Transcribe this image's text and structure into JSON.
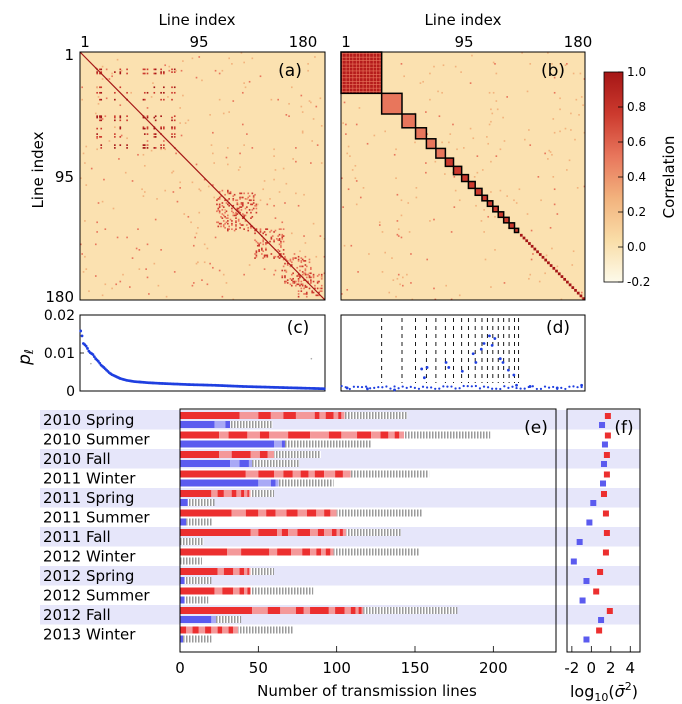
{
  "figure": {
    "panel_a": {
      "label": "(a)",
      "top_axis_label": "Line index",
      "left_axis_label": "Line index",
      "top_ticks": [
        "1",
        "95",
        "180"
      ],
      "left_ticks": [
        "1",
        "95",
        "180"
      ]
    },
    "panel_b": {
      "label": "(b)",
      "top_axis_label": "Line index",
      "top_ticks": [
        "1",
        "95",
        "180"
      ]
    },
    "colorbar": {
      "label": "Correlation",
      "ticks": [
        "1.0",
        "0.8",
        "0.6",
        "0.4",
        "0.2",
        "0.0",
        "-0.2"
      ],
      "colors": [
        "#fdfaea",
        "#f9dda7",
        "#f2b27d",
        "#e8765c",
        "#cc3a2e",
        "#a51616"
      ]
    },
    "panel_c": {
      "label": "(c)",
      "ylabel": "p_ℓ",
      "yticks": [
        "0.02",
        "0.01",
        "0"
      ]
    },
    "panel_d": {
      "label": "(d)"
    },
    "panel_e": {
      "label": "(e)",
      "xlabel": "Number of transmission lines",
      "xticks": [
        "0",
        "50",
        "100",
        "150",
        "200"
      ]
    },
    "panel_f": {
      "label": "(f)",
      "xlabel": "log₁₀(σ̄²)",
      "xticks": [
        "-2",
        "0",
        "2",
        "4"
      ]
    },
    "colors": {
      "red": "#ec2f2f",
      "pink": "#f4999a",
      "blue": "#5b5bef",
      "lightblue": "#a9a9f6",
      "gray": "#9a9a9a",
      "band": "#e6e6fa",
      "dot_blue": "#1f3fe0"
    }
  },
  "chart_data": [
    {
      "type": "heatmap",
      "panel": "a",
      "title": "",
      "xlabel": "Line index",
      "ylabel": "Line index",
      "x_ticks": [
        1,
        95,
        180
      ],
      "y_ticks": [
        1,
        95,
        180
      ],
      "color_range": [
        -0.2,
        1.0
      ],
      "description_blocks": "unsorted correlation matrix of 180 transmission lines, strong diagonal"
    },
    {
      "type": "heatmap",
      "panel": "b",
      "xlabel": "Line index",
      "x_ticks": [
        1,
        95,
        180
      ],
      "color_range": [
        -0.2,
        1.0
      ],
      "cluster_blocks_line_index": [
        [
          1,
          30
        ],
        [
          31,
          45
        ],
        [
          46,
          55
        ],
        [
          56,
          63
        ],
        [
          64,
          70
        ],
        [
          71,
          77
        ],
        [
          78,
          83
        ],
        [
          84,
          89
        ],
        [
          90,
          94
        ],
        [
          95,
          99
        ],
        [
          100,
          104
        ],
        [
          105,
          108
        ],
        [
          109,
          112
        ],
        [
          113,
          116
        ],
        [
          117,
          120
        ],
        [
          121,
          124
        ],
        [
          125,
          128
        ],
        [
          129,
          131
        ]
      ]
    },
    {
      "type": "scatter",
      "panel": "c",
      "ylabel": "p_ℓ",
      "ylim": [
        0,
        0.02
      ],
      "x_range": [
        1,
        180
      ],
      "points_sampled": [
        [
          1,
          0.0158
        ],
        [
          2,
          0.0145
        ],
        [
          3,
          0.0125
        ],
        [
          4,
          0.0122
        ],
        [
          5,
          0.0118
        ],
        [
          6,
          0.0112
        ],
        [
          7,
          0.0105
        ],
        [
          8,
          0.0101
        ],
        [
          10,
          0.0096
        ],
        [
          12,
          0.0085
        ],
        [
          14,
          0.0078
        ],
        [
          16,
          0.0068
        ],
        [
          18,
          0.0062
        ],
        [
          20,
          0.0055
        ],
        [
          22,
          0.0048
        ],
        [
          24,
          0.0043
        ],
        [
          27,
          0.0038
        ],
        [
          30,
          0.0033
        ],
        [
          35,
          0.0028
        ],
        [
          40,
          0.0025
        ],
        [
          50,
          0.0022
        ],
        [
          60,
          0.002
        ],
        [
          80,
          0.0017
        ],
        [
          100,
          0.0015
        ],
        [
          120,
          0.0012
        ],
        [
          140,
          0.001
        ],
        [
          160,
          0.0008
        ],
        [
          180,
          0.0006
        ]
      ]
    },
    {
      "type": "scatter",
      "panel": "d",
      "ylim": [
        0,
        0.02
      ],
      "x_range": [
        1,
        180
      ],
      "dashed_cluster_boundaries_line_index": [
        31,
        46,
        56,
        64,
        71,
        78,
        84,
        90,
        95,
        100,
        105,
        109,
        113,
        117,
        121,
        125,
        129,
        132
      ],
      "points_sampled": [
        [
          5,
          0.0008
        ],
        [
          20,
          0.0006
        ],
        [
          40,
          0.0003
        ],
        [
          60,
          0.0058
        ],
        [
          62,
          0.0035
        ],
        [
          64,
          0.0062
        ],
        [
          78,
          0.0075
        ],
        [
          80,
          0.0062
        ],
        [
          90,
          0.0052
        ],
        [
          98,
          0.0098
        ],
        [
          100,
          0.0075
        ],
        [
          104,
          0.011
        ],
        [
          106,
          0.0125
        ],
        [
          110,
          0.0145
        ],
        [
          112,
          0.012
        ],
        [
          114,
          0.0138
        ],
        [
          118,
          0.0085
        ],
        [
          120,
          0.0075
        ],
        [
          124,
          0.0055
        ],
        [
          128,
          0.0042
        ],
        [
          130,
          0.0015
        ],
        [
          140,
          0.0012
        ],
        [
          160,
          0.0008
        ],
        [
          178,
          0.0015
        ]
      ]
    },
    {
      "type": "bar",
      "panel": "e",
      "xlabel": "Number of transmission lines",
      "xlim": [
        0,
        240
      ],
      "categories": [
        "2010 Spring",
        "2010 Summer",
        "2010 Fall",
        "2011 Winter",
        "2011 Spring",
        "2011 Summer",
        "2011 Fall",
        "2012 Winter",
        "2012 Spring",
        "2012 Summer",
        "2012 Fall",
        "2013 Winter"
      ],
      "series": [
        {
          "name": "",
          "color": "red",
          "values": [
            [
              38,
              12,
              8,
              8,
              8,
              12,
              3,
              4,
              5,
              3,
              2,
              2
            ],
            [
              25,
              6,
              12,
              8,
              6,
              12,
              14,
              12,
              8,
              10,
              9,
              6,
              5,
              4,
              3,
              3
            ],
            [
              25,
              8,
              12,
              6,
              5,
              4
            ],
            [
              42,
              8,
              10,
              6,
              6,
              5,
              5,
              4,
              6,
              7,
              5,
              5
            ],
            [
              20,
              4,
              4,
              5,
              3,
              3,
              2,
              2,
              1,
              1
            ],
            [
              33,
              9,
              8,
              5,
              6,
              7,
              7,
              6,
              6,
              5,
              4,
              4
            ],
            [
              45,
              5,
              12,
              3,
              4,
              6,
              8,
              5,
              4,
              5,
              3,
              2,
              2,
              2
            ],
            [
              30,
              9,
              18,
              5,
              9,
              7,
              5,
              4,
              3,
              3,
              3,
              2
            ],
            [
              24,
              4,
              6,
              4,
              3,
              2,
              1,
              1
            ],
            [
              22,
              5,
              7,
              4,
              3,
              2,
              2
            ],
            [
              46,
              10,
              8,
              10,
              5,
              4,
              12,
              4,
              6,
              4,
              3,
              2,
              2,
              1
            ],
            [
              4,
              4,
              4,
              4,
              4,
              4,
              3,
              4,
              3,
              3
            ]
          ]
        },
        {
          "name": "",
          "color": "gray",
          "values": [
            40,
            55,
            30,
            50,
            15,
            55,
            35,
            55,
            15,
            40,
            60,
            35
          ]
        },
        {
          "name": "",
          "color": "blue",
          "values": [
            [
              22,
              7,
              3
            ],
            [
              60,
              5,
              2
            ],
            [
              32,
              6,
              6,
              2
            ],
            [
              50,
              8,
              3,
              2
            ],
            [
              5
            ],
            [
              4
            ],
            [
              0
            ],
            [
              0
            ],
            [
              3
            ],
            [
              3
            ],
            [
              20,
              3
            ],
            [
              2
            ]
          ]
        },
        {
          "name": "",
          "color": "lightblue_gray",
          "values": [
            27,
            55,
            30,
            35,
            17,
            17,
            15,
            14,
            17,
            15,
            16,
            18
          ]
        }
      ]
    },
    {
      "type": "scatter",
      "panel": "f",
      "xlabel": "log10(σ̄²)",
      "xlim": [
        -2.5,
        5
      ],
      "red_points_y_per_category": [
        1.7,
        1.7,
        1.6,
        1.6,
        1.3,
        1.5,
        1.6,
        1.5,
        0.9,
        0.5,
        1.9,
        0.8
      ],
      "blue_points_y_per_category": [
        1.1,
        1.4,
        1.3,
        1.2,
        0.2,
        -0.2,
        -1.2,
        -1.8,
        -0.5,
        -0.9,
        1.0,
        -0.5
      ]
    }
  ]
}
